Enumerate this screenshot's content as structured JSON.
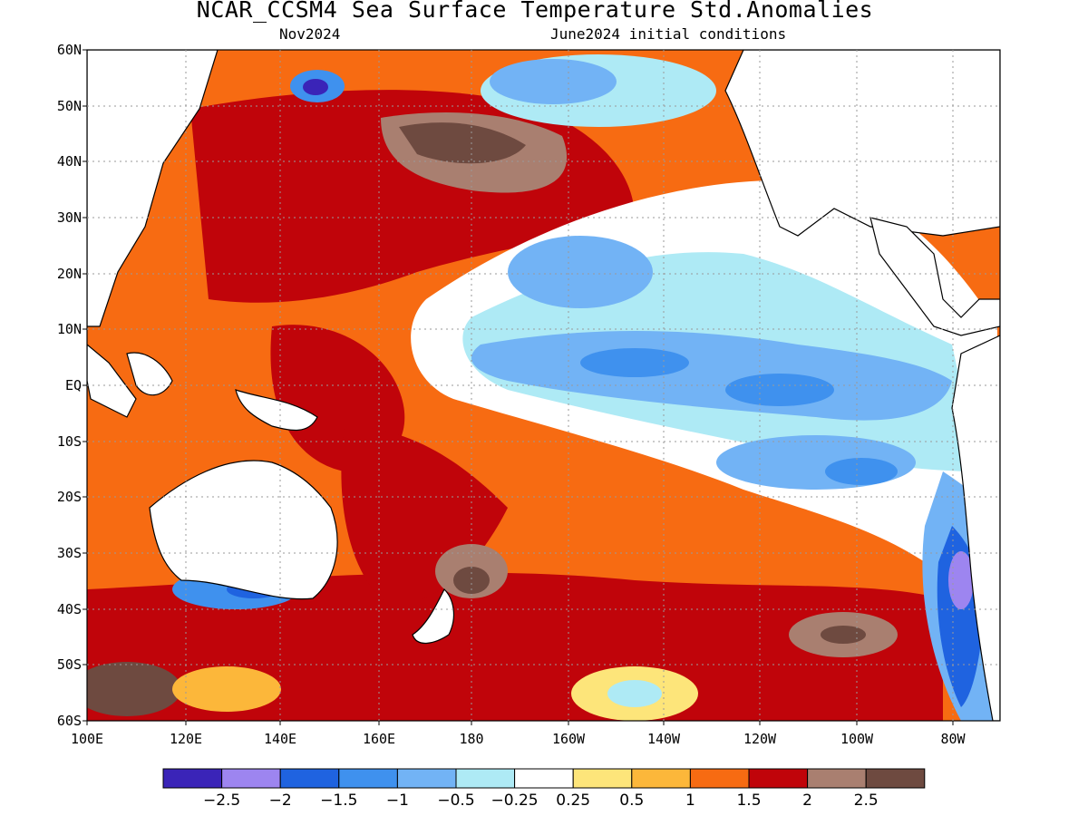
{
  "figure": {
    "title": "NCAR_CCSM4 Sea Surface Temperature Std.Anomalies",
    "subtitle_left": "Nov2024",
    "subtitle_right": "June2024 initial conditions"
  },
  "map": {
    "region": "Pacific Ocean",
    "lon_range": [
      "100E",
      "70W"
    ],
    "lat_range": [
      "60S",
      "60N"
    ],
    "grid": true,
    "lat_labels": [
      "60N",
      "50N",
      "40N",
      "30N",
      "20N",
      "10N",
      "EQ",
      "10S",
      "20S",
      "30S",
      "40S",
      "50S",
      "60S"
    ],
    "lon_labels": [
      "100E",
      "120E",
      "140E",
      "160E",
      "180",
      "160W",
      "140W",
      "120W",
      "100W",
      "80W"
    ]
  },
  "colorbar": {
    "colors": [
      "#3a24b8",
      "#9d85f0",
      "#1f63e0",
      "#3f91ee",
      "#72b3f5",
      "#aeeaf5",
      "#ffffff",
      "#fde57a",
      "#fcb73a",
      "#f76b12",
      "#c0040a",
      "#a97f70",
      "#6e4a40"
    ],
    "labels": [
      "-2.5",
      "-2",
      "-1.5",
      "-1",
      "-0.5",
      "-0.25",
      "0.25",
      "0.5",
      "1",
      "1.5",
      "2",
      "2.5"
    ]
  },
  "colors": {
    "white": "#ffffff",
    "cool_light": "#aeeaf5",
    "cool_mid": "#72b3f5",
    "cool_strong": "#3f91ee",
    "cool_deep": "#1f63e0",
    "cool_extreme": "#9d85f0",
    "warm_light": "#fde57a",
    "warm_mid": "#fcb73a",
    "warm_strong": "#f76b12",
    "warm_deep": "#c0040a",
    "warm_extreme": "#a97f70",
    "warm_max": "#6e4a40"
  }
}
